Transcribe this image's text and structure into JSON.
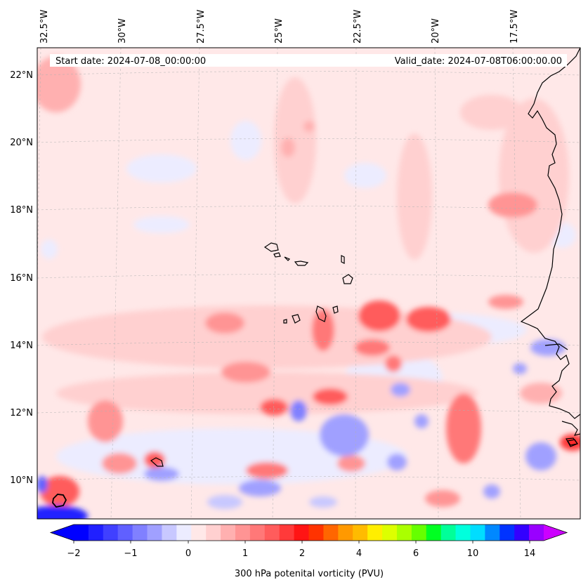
{
  "map": {
    "start_label": "Start date: 2024-07-08_00:00:00",
    "valid_label": "Valid_date: 2024-07-08T06:00:00.00",
    "lon_labels": [
      "32.5°W",
      "30°W",
      "27.5°W",
      "25°W",
      "22.5°W",
      "20°W",
      "17.5°W"
    ],
    "lat_labels": [
      "22°N",
      "20°N",
      "18°N",
      "16°N",
      "14°N",
      "12°N",
      "10°N"
    ],
    "gridlines": "dashed",
    "projection": "lambert-conformal"
  },
  "colorbar": {
    "label": "300 hPa potenital vorticity (PVU)",
    "tick_labels": [
      "−2",
      "−1",
      "0",
      "1",
      "2",
      "4",
      "6",
      "10",
      "14"
    ],
    "extend": "both",
    "colors": [
      "#0000ff",
      "#2020ff",
      "#4040ff",
      "#6060ff",
      "#8080ff",
      "#a0a0ff",
      "#c8c8ff",
      "#ececff",
      "#ffe8e8",
      "#ffd0d0",
      "#ffb0b0",
      "#ff9494",
      "#ff7878",
      "#ff5c5c",
      "#ff3a3a",
      "#ff1414",
      "#ff3300",
      "#ff6600",
      "#ff9900",
      "#ffbb00",
      "#ffee00",
      "#ddff00",
      "#aaff00",
      "#66ff00",
      "#00ff22",
      "#00ff99",
      "#00ffdd",
      "#00ddff",
      "#0088ff",
      "#0033ff",
      "#3300ff",
      "#9900ff"
    ],
    "under_color": "#0000ff",
    "over_color": "#cc00ff"
  }
}
